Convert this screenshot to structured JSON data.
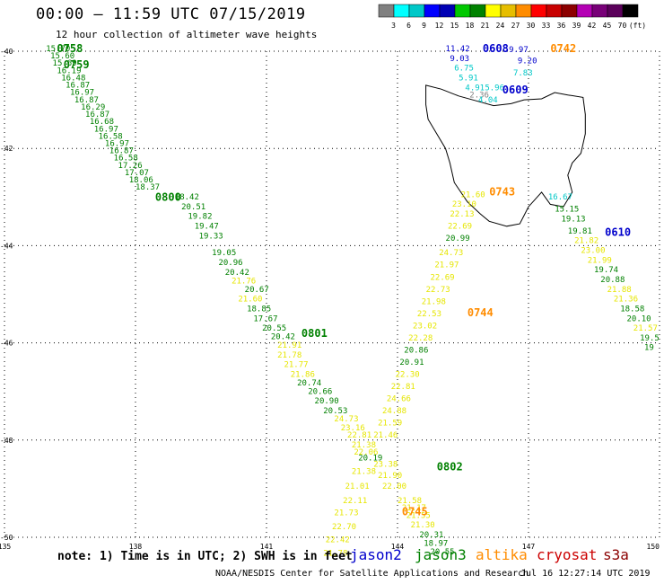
{
  "header": {
    "title": "00:00 – 11:59 UTC 07/15/2019",
    "subtitle": "12 hour collection of altimeter wave heights"
  },
  "colorbar": {
    "colors": [
      "#808080",
      "#00ffff",
      "#00c8c8",
      "#0000ff",
      "#0000b4",
      "#00c800",
      "#008200",
      "#ffff00",
      "#e6be00",
      "#ff8c00",
      "#ff0000",
      "#c80000",
      "#8c0000",
      "#b400b4",
      "#780078",
      "#5a005a",
      "#000000"
    ],
    "labels": [
      "3",
      "6",
      "9",
      "12",
      "15",
      "18",
      "21",
      "24",
      "27",
      "30",
      "33",
      "36",
      "39",
      "42",
      "45",
      "70",
      "(ft)"
    ]
  },
  "map": {
    "lon_range": [
      135,
      150
    ],
    "lat_range": [
      -50,
      -40
    ],
    "lat_ticks": [
      -40,
      -42,
      -44,
      -46,
      -48,
      -50
    ],
    "lon_ticks": [
      135,
      138,
      141,
      144,
      147,
      150
    ],
    "lat_tick_labels": [
      "-40",
      "-42",
      "-44",
      "-46",
      "-48",
      "-50"
    ],
    "lon_tick_labels": [
      "135",
      "138",
      "141",
      "144",
      "147",
      "150"
    ]
  },
  "sat_colors": {
    "jason2": "#0000cc",
    "jason3": "#008000",
    "altika": "#ff8c00",
    "cryosat": "#cc0000",
    "s3a": "#8b0000",
    "green": "#008000",
    "yellow": "#e6e600",
    "cyan": "#00c8c8",
    "blue": "#0000cc",
    "gray": "#808080",
    "orange": "#e68a00"
  },
  "chart_data": {
    "type": "scatter",
    "time_labels": [
      {
        "text": "0758",
        "lon": 136.2,
        "lat": -40.02,
        "sat": "jason3"
      },
      {
        "text": "0759",
        "lon": 136.35,
        "lat": -40.35,
        "sat": "jason3"
      },
      {
        "text": "0800",
        "lon": 138.45,
        "lat": -43.08,
        "sat": "jason3"
      },
      {
        "text": "0801",
        "lon": 141.8,
        "lat": -45.88,
        "sat": "jason3"
      },
      {
        "text": "0802",
        "lon": 144.9,
        "lat": -48.62,
        "sat": "jason3"
      },
      {
        "text": "0608",
        "lon": 145.95,
        "lat": -40.02,
        "sat": "jason2"
      },
      {
        "text": "0609",
        "lon": 146.4,
        "lat": -40.87,
        "sat": "jason2"
      },
      {
        "text": "0610",
        "lon": 148.75,
        "lat": -43.8,
        "sat": "jason2"
      },
      {
        "text": "0742",
        "lon": 147.5,
        "lat": -40.02,
        "sat": "altika"
      },
      {
        "text": "0743",
        "lon": 146.1,
        "lat": -42.97,
        "sat": "altika"
      },
      {
        "text": "0744",
        "lon": 145.6,
        "lat": -45.45,
        "sat": "altika"
      },
      {
        "text": "0745",
        "lon": 144.1,
        "lat": -49.55,
        "sat": "altika"
      }
    ],
    "wave_heights": [
      {
        "v": "15.70",
        "lon": 135.95,
        "lat": -40.0,
        "c": "green"
      },
      {
        "v": "15.60",
        "lon": 136.05,
        "lat": -40.15,
        "c": "green"
      },
      {
        "v": "15.69",
        "lon": 136.1,
        "lat": -40.3,
        "c": "green"
      },
      {
        "v": "16.19",
        "lon": 136.2,
        "lat": -40.45,
        "c": "green"
      },
      {
        "v": "16.48",
        "lon": 136.3,
        "lat": -40.6,
        "c": "green"
      },
      {
        "v": "16.87",
        "lon": 136.4,
        "lat": -40.75,
        "c": "green"
      },
      {
        "v": "16.97",
        "lon": 136.5,
        "lat": -40.9,
        "c": "green"
      },
      {
        "v": "16.87",
        "lon": 136.6,
        "lat": -41.05,
        "c": "green"
      },
      {
        "v": "16.29",
        "lon": 136.75,
        "lat": -41.2,
        "c": "green"
      },
      {
        "v": "16.87",
        "lon": 136.85,
        "lat": -41.35,
        "c": "green"
      },
      {
        "v": "16.68",
        "lon": 136.95,
        "lat": -41.5,
        "c": "green"
      },
      {
        "v": "16.97",
        "lon": 137.05,
        "lat": -41.65,
        "c": "green"
      },
      {
        "v": "16.58",
        "lon": 137.15,
        "lat": -41.8,
        "c": "green"
      },
      {
        "v": "16.97",
        "lon": 137.3,
        "lat": -41.95,
        "c": "green"
      },
      {
        "v": "16.87",
        "lon": 137.4,
        "lat": -42.1,
        "c": "green"
      },
      {
        "v": "16.58",
        "lon": 137.5,
        "lat": -42.25,
        "c": "green"
      },
      {
        "v": "17.26",
        "lon": 137.6,
        "lat": -42.4,
        "c": "green"
      },
      {
        "v": "17.07",
        "lon": 137.75,
        "lat": -42.55,
        "c": "green"
      },
      {
        "v": "18.06",
        "lon": 137.85,
        "lat": -42.7,
        "c": "green"
      },
      {
        "v": "18.37",
        "lon": 138.0,
        "lat": -42.85,
        "c": "green"
      },
      {
        "v": "18.42",
        "lon": 138.9,
        "lat": -43.05,
        "c": "green"
      },
      {
        "v": "20.51",
        "lon": 139.05,
        "lat": -43.25,
        "c": "green"
      },
      {
        "v": "19.82",
        "lon": 139.2,
        "lat": -43.45,
        "c": "green"
      },
      {
        "v": "19.47",
        "lon": 139.35,
        "lat": -43.65,
        "c": "green"
      },
      {
        "v": "19.33",
        "lon": 139.45,
        "lat": -43.85,
        "c": "green"
      },
      {
        "v": "19.05",
        "lon": 139.75,
        "lat": -44.2,
        "c": "green"
      },
      {
        "v": "20.96",
        "lon": 139.9,
        "lat": -44.4,
        "c": "green"
      },
      {
        "v": "20.42",
        "lon": 140.05,
        "lat": -44.6,
        "c": "green"
      },
      {
        "v": "21.76",
        "lon": 140.2,
        "lat": -44.78,
        "c": "yellow"
      },
      {
        "v": "20.67",
        "lon": 140.5,
        "lat": -44.95,
        "c": "green"
      },
      {
        "v": "21.60",
        "lon": 140.35,
        "lat": -45.15,
        "c": "yellow"
      },
      {
        "v": "18.85",
        "lon": 140.55,
        "lat": -45.35,
        "c": "green"
      },
      {
        "v": "17.67",
        "lon": 140.7,
        "lat": -45.55,
        "c": "green"
      },
      {
        "v": "20.55",
        "lon": 140.9,
        "lat": -45.75,
        "c": "green"
      },
      {
        "v": "20.42",
        "lon": 141.1,
        "lat": -45.92,
        "c": "green"
      },
      {
        "v": "21.91",
        "lon": 141.25,
        "lat": -46.1,
        "c": "yellow"
      },
      {
        "v": "21.78",
        "lon": 141.25,
        "lat": -46.3,
        "c": "yellow"
      },
      {
        "v": "21.77",
        "lon": 141.4,
        "lat": -46.5,
        "c": "yellow"
      },
      {
        "v": "21.86",
        "lon": 141.55,
        "lat": -46.7,
        "c": "yellow"
      },
      {
        "v": "20.74",
        "lon": 141.7,
        "lat": -46.88,
        "c": "green"
      },
      {
        "v": "20.66",
        "lon": 141.95,
        "lat": -47.05,
        "c": "green"
      },
      {
        "v": "20.90",
        "lon": 142.1,
        "lat": -47.25,
        "c": "green"
      },
      {
        "v": "20.53",
        "lon": 142.3,
        "lat": -47.45,
        "c": "green"
      },
      {
        "v": "24.73",
        "lon": 142.55,
        "lat": -47.62,
        "c": "yellow"
      },
      {
        "v": "23.16",
        "lon": 142.7,
        "lat": -47.8,
        "c": "yellow"
      },
      {
        "v": "22.81",
        "lon": 142.85,
        "lat": -47.95,
        "c": "yellow"
      },
      {
        "v": "21.38",
        "lon": 142.95,
        "lat": -48.15,
        "c": "yellow"
      },
      {
        "v": "20.19",
        "lon": 143.1,
        "lat": -48.42,
        "c": "green"
      },
      {
        "v": "22.06",
        "lon": 143.0,
        "lat": -48.3,
        "c": "yellow"
      },
      {
        "v": "21.38",
        "lon": 142.95,
        "lat": -48.7,
        "c": "yellow"
      },
      {
        "v": "21.01",
        "lon": 142.8,
        "lat": -49.0,
        "c": "yellow"
      },
      {
        "v": "22.11",
        "lon": 142.75,
        "lat": -49.3,
        "c": "yellow"
      },
      {
        "v": "21.73",
        "lon": 142.55,
        "lat": -49.55,
        "c": "yellow"
      },
      {
        "v": "22.70",
        "lon": 142.5,
        "lat": -49.83,
        "c": "yellow"
      },
      {
        "v": "22.42",
        "lon": 142.35,
        "lat": -50.1,
        "c": "yellow"
      },
      {
        "v": "21.78",
        "lon": 142.3,
        "lat": -50.38,
        "c": "yellow"
      },
      {
        "v": "23.38",
        "lon": 143.45,
        "lat": -48.55,
        "c": "yellow"
      },
      {
        "v": "21.90",
        "lon": 143.55,
        "lat": -48.78,
        "c": "yellow"
      },
      {
        "v": "22.00",
        "lon": 143.65,
        "lat": -49.0,
        "c": "yellow"
      },
      {
        "v": "21.58",
        "lon": 144.0,
        "lat": -49.3,
        "c": "yellow"
      },
      {
        "v": "21.17",
        "lon": 144.1,
        "lat": -49.45,
        "c": "yellow"
      },
      {
        "v": "21.55",
        "lon": 144.2,
        "lat": -49.6,
        "c": "yellow"
      },
      {
        "v": "21.30",
        "lon": 144.3,
        "lat": -49.8,
        "c": "yellow"
      },
      {
        "v": "20.31",
        "lon": 144.5,
        "lat": -50.0,
        "c": "green"
      },
      {
        "v": "18.97",
        "lon": 144.6,
        "lat": -50.18,
        "c": "green"
      },
      {
        "v": "20.55",
        "lon": 144.75,
        "lat": -50.35,
        "c": "green"
      },
      {
        "v": "11.42",
        "lon": 145.1,
        "lat": -40.0,
        "c": "blue"
      },
      {
        "v": "9.03",
        "lon": 145.2,
        "lat": -40.2,
        "c": "blue"
      },
      {
        "v": "6.75",
        "lon": 145.3,
        "lat": -40.4,
        "c": "cyan"
      },
      {
        "v": "5.91",
        "lon": 145.4,
        "lat": -40.6,
        "c": "cyan"
      },
      {
        "v": "4.91",
        "lon": 145.55,
        "lat": -40.8,
        "c": "cyan"
      },
      {
        "v": "2.36",
        "lon": 145.65,
        "lat": -40.95,
        "c": "gray"
      },
      {
        "v": "5.96",
        "lon": 146.0,
        "lat": -40.8,
        "c": "cyan"
      },
      {
        "v": "4.04",
        "lon": 145.85,
        "lat": -41.05,
        "c": "cyan"
      },
      {
        "v": "9.97",
        "lon": 146.55,
        "lat": -40.02,
        "c": "blue"
      },
      {
        "v": "9.20",
        "lon": 146.75,
        "lat": -40.25,
        "c": "blue"
      },
      {
        "v": "7.83",
        "lon": 146.65,
        "lat": -40.5,
        "c": "cyan"
      },
      {
        "v": "21.60",
        "lon": 145.45,
        "lat": -43.0,
        "c": "yellow"
      },
      {
        "v": "23.10",
        "lon": 145.25,
        "lat": -43.2,
        "c": "yellow"
      },
      {
        "v": "22.13",
        "lon": 145.2,
        "lat": -43.4,
        "c": "yellow"
      },
      {
        "v": "22.69",
        "lon": 145.15,
        "lat": -43.65,
        "c": "yellow"
      },
      {
        "v": "20.99",
        "lon": 145.1,
        "lat": -43.9,
        "c": "green"
      },
      {
        "v": "24.73",
        "lon": 144.95,
        "lat": -44.2,
        "c": "yellow"
      },
      {
        "v": "21.97",
        "lon": 144.85,
        "lat": -44.45,
        "c": "yellow"
      },
      {
        "v": "22.69",
        "lon": 144.75,
        "lat": -44.7,
        "c": "yellow"
      },
      {
        "v": "22.73",
        "lon": 144.65,
        "lat": -44.95,
        "c": "yellow"
      },
      {
        "v": "21.98",
        "lon": 144.55,
        "lat": -45.2,
        "c": "yellow"
      },
      {
        "v": "22.53",
        "lon": 144.45,
        "lat": -45.45,
        "c": "yellow"
      },
      {
        "v": "23.02",
        "lon": 144.35,
        "lat": -45.7,
        "c": "yellow"
      },
      {
        "v": "22.28",
        "lon": 144.25,
        "lat": -45.95,
        "c": "yellow"
      },
      {
        "v": "20.86",
        "lon": 144.15,
        "lat": -46.2,
        "c": "green"
      },
      {
        "v": "20.91",
        "lon": 144.05,
        "lat": -46.45,
        "c": "green"
      },
      {
        "v": "22.30",
        "lon": 143.95,
        "lat": -46.7,
        "c": "yellow"
      },
      {
        "v": "22.81",
        "lon": 143.85,
        "lat": -46.95,
        "c": "yellow"
      },
      {
        "v": "24.66",
        "lon": 143.75,
        "lat": -47.2,
        "c": "yellow"
      },
      {
        "v": "24.88",
        "lon": 143.65,
        "lat": -47.45,
        "c": "yellow"
      },
      {
        "v": "21.59",
        "lon": 143.55,
        "lat": -47.7,
        "c": "yellow"
      },
      {
        "v": "21.46",
        "lon": 143.45,
        "lat": -47.95,
        "c": "yellow"
      },
      {
        "v": "16.67",
        "lon": 147.45,
        "lat": -43.05,
        "c": "cyan"
      },
      {
        "v": "15.15",
        "lon": 147.6,
        "lat": -43.3,
        "c": "green"
      },
      {
        "v": "19.13",
        "lon": 147.75,
        "lat": -43.5,
        "c": "green"
      },
      {
        "v": "19.81",
        "lon": 147.9,
        "lat": -43.75,
        "c": "green"
      },
      {
        "v": "21.82",
        "lon": 148.05,
        "lat": -43.95,
        "c": "yellow"
      },
      {
        "v": "23.00",
        "lon": 148.2,
        "lat": -44.15,
        "c": "yellow"
      },
      {
        "v": "21.99",
        "lon": 148.35,
        "lat": -44.35,
        "c": "yellow"
      },
      {
        "v": "19.74",
        "lon": 148.5,
        "lat": -44.55,
        "c": "green"
      },
      {
        "v": "20.88",
        "lon": 148.65,
        "lat": -44.75,
        "c": "green"
      },
      {
        "v": "21.88",
        "lon": 148.8,
        "lat": -44.95,
        "c": "yellow"
      },
      {
        "v": "21.36",
        "lon": 148.95,
        "lat": -45.15,
        "c": "yellow"
      },
      {
        "v": "18.58",
        "lon": 149.1,
        "lat": -45.35,
        "c": "green"
      },
      {
        "v": "20.10",
        "lon": 149.25,
        "lat": -45.55,
        "c": "green"
      },
      {
        "v": "21.57",
        "lon": 149.4,
        "lat": -45.75,
        "c": "yellow"
      },
      {
        "v": "19.5",
        "lon": 149.55,
        "lat": -45.95,
        "c": "green"
      },
      {
        "v": "19",
        "lon": 149.65,
        "lat": -46.15,
        "c": "green"
      }
    ]
  },
  "legend": {
    "note": "note: 1) Time is in UTC; 2) SWH is in feet",
    "sats": [
      {
        "label": "jason2",
        "key": "jason2"
      },
      {
        "label": "jason3",
        "key": "jason3"
      },
      {
        "label": "altika",
        "key": "altika"
      },
      {
        "label": "cryosat",
        "key": "cryosat"
      },
      {
        "label": "s3a",
        "key": "s3a"
      }
    ]
  },
  "footer": {
    "credit": "NOAA/NESDIS Center for Satellite Applications and Research",
    "timestamp": "Jul 16 12:27:14 UTC 2019"
  }
}
